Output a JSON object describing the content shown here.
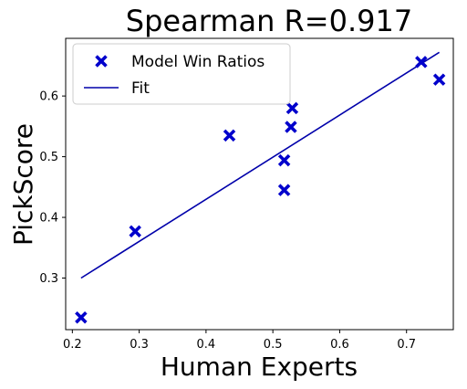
{
  "chart_data": {
    "type": "scatter",
    "title": "Spearman R=0.917",
    "xlabel": "Human Experts",
    "ylabel": "PickScore",
    "xlim": [
      0.19,
      0.77
    ],
    "ylim": [
      0.215,
      0.695
    ],
    "xticks": [
      "0.2",
      "0.3",
      "0.4",
      "0.5",
      "0.6",
      "0.7"
    ],
    "yticks": [
      "0.3",
      "0.4",
      "0.5",
      "0.6"
    ],
    "grid": false,
    "legend_position": "top-left",
    "series": [
      {
        "name": "Model Win Ratios",
        "kind": "scatter",
        "marker": "X",
        "color": "#0000cc",
        "points": [
          {
            "x": 0.213,
            "y": 0.235
          },
          {
            "x": 0.294,
            "y": 0.377
          },
          {
            "x": 0.435,
            "y": 0.535
          },
          {
            "x": 0.517,
            "y": 0.445
          },
          {
            "x": 0.517,
            "y": 0.494
          },
          {
            "x": 0.527,
            "y": 0.549
          },
          {
            "x": 0.529,
            "y": 0.58
          },
          {
            "x": 0.722,
            "y": 0.656
          },
          {
            "x": 0.749,
            "y": 0.627
          }
        ]
      },
      {
        "name": "Fit",
        "kind": "line",
        "color": "#0000aa",
        "points": [
          {
            "x": 0.213,
            "y": 0.3
          },
          {
            "x": 0.749,
            "y": 0.672
          }
        ]
      }
    ]
  }
}
